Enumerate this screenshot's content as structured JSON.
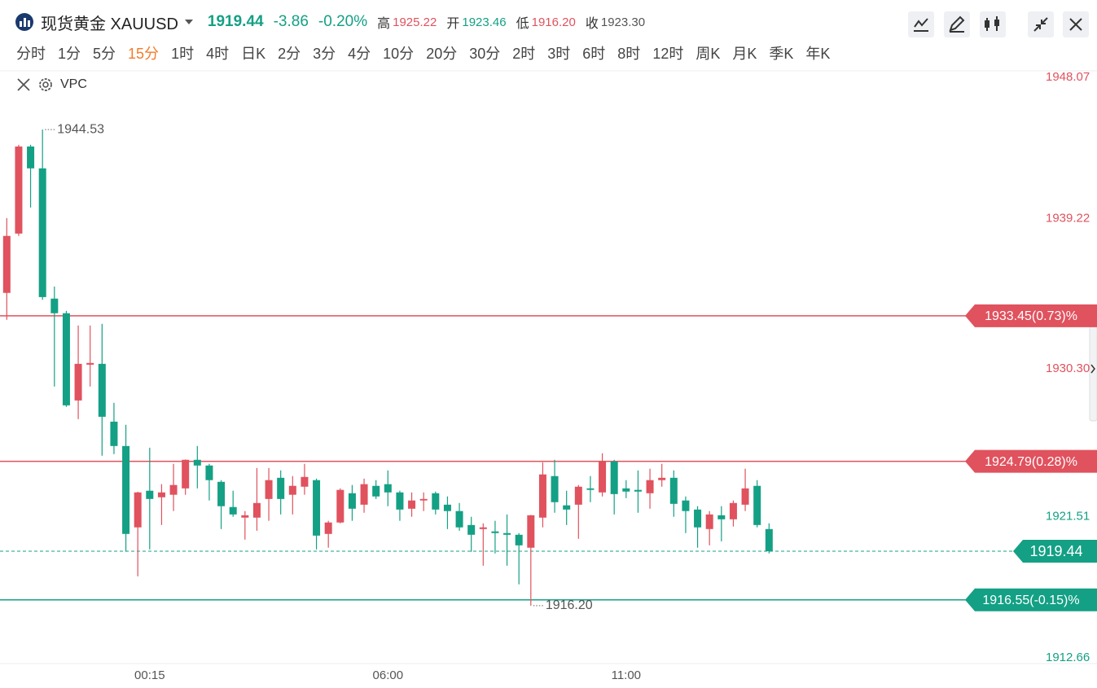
{
  "header": {
    "title": "现货黄金 XAUUSD",
    "price": "1919.44",
    "change": "-3.86",
    "change_pct": "-0.20%",
    "stats": [
      {
        "label": "高",
        "value": "1925.22"
      },
      {
        "label": "开",
        "value": "1923.46"
      },
      {
        "label": "低",
        "value": "1916.20"
      },
      {
        "label": "收",
        "value": "1923.30"
      }
    ]
  },
  "toolbar": {
    "timeframes": [
      "分时",
      "1分",
      "5分",
      "15分",
      "1时",
      "4时",
      "日K",
      "2分",
      "3分",
      "4分",
      "10分",
      "20分",
      "30分",
      "2时",
      "3时",
      "6时",
      "8时",
      "12时",
      "周K",
      "月K",
      "季K",
      "年K"
    ],
    "active": 3
  },
  "indicator": "VPC",
  "chart_data": {
    "type": "candlestick",
    "categories": [
      null,
      null,
      null,
      null,
      null,
      null,
      null,
      null,
      null,
      null,
      null,
      null,
      "00:15",
      null,
      null,
      null,
      null,
      null,
      null,
      null,
      null,
      null,
      null,
      null,
      null,
      null,
      null,
      null,
      null,
      null,
      null,
      null,
      "06:00",
      null,
      null,
      null,
      null,
      null,
      null,
      null,
      null,
      null,
      null,
      null,
      null,
      null,
      null,
      null,
      null,
      null,
      null,
      null,
      "11:00",
      null,
      null,
      null,
      null,
      null,
      null,
      null,
      null,
      null,
      null,
      null,
      null
    ],
    "open": [
      1934.81,
      1938.34,
      1943.52,
      1942.22,
      1934.47,
      1933.6,
      1928.41,
      1930.54,
      1930.59,
      1927.15,
      1925.7,
      1920.86,
      1923.04,
      1922.65,
      1922.8,
      1923.18,
      1924.88,
      1924.54,
      1923.57,
      1922.07,
      1921.44,
      1921.44,
      1922.55,
      1923.81,
      1922.8,
      1923.28,
      1923.67,
      1920.47,
      1921.15,
      1922.89,
      1922.21,
      1923.33,
      1923.43,
      1922.94,
      1921.97,
      1922.46,
      1922.89,
      1922.21,
      1921.83,
      1921.0,
      1920.76,
      1920.62,
      1920.52,
      1920.42,
      1919.65,
      1921.44,
      1923.91,
      1922.17,
      1922.21,
      1923.18,
      1922.94,
      1924.78,
      1923.18,
      1923.09,
      1922.89,
      1923.67,
      1923.81,
      1922.46,
      1921.92,
      1920.76,
      1921.58,
      1921.34,
      1922.21,
      1923.33,
      1920.76
    ],
    "high": [
      1939.26,
      1943.62,
      1943.62,
      1944.53,
      1935.19,
      1933.74,
      1932.87,
      1932.87,
      1932.97,
      1928.27,
      1926.96,
      1922.98,
      1925.6,
      1923.43,
      1924.64,
      1924.9,
      1925.7,
      1924.64,
      1923.67,
      1923.04,
      1921.83,
      1924.39,
      1924.39,
      1924.25,
      1923.91,
      1924.64,
      1923.76,
      1921.25,
      1923.18,
      1923.38,
      1923.76,
      1923.67,
      1924.25,
      1923.04,
      1922.94,
      1922.94,
      1922.99,
      1922.7,
      1922.31,
      1921.49,
      1921.1,
      1921.25,
      1921.63,
      1920.52,
      1921.6,
      1924.73,
      1924.88,
      1923.04,
      1923.38,
      1923.91,
      1925.27,
      1924.88,
      1923.67,
      1924.25,
      1924.35,
      1924.64,
      1924.25,
      1922.7,
      1922.12,
      1921.83,
      1922.12,
      1922.46,
      1924.35,
      1923.67,
      1921.1
    ],
    "low": [
      1933.21,
      1938.2,
      1939.89,
      1934.4,
      1929.24,
      1928.03,
      1927.3,
      1929.24,
      1925.12,
      1925.22,
      1919.41,
      1917.95,
      1919.55,
      1921.0,
      1921.83,
      1922.8,
      1923.18,
      1922.46,
      1920.76,
      1921.49,
      1920.13,
      1920.66,
      1921.25,
      1921.63,
      1921.63,
      1922.8,
      1919.55,
      1919.65,
      1921.1,
      1921.25,
      1921.73,
      1922.55,
      1922.12,
      1921.25,
      1921.49,
      1921.83,
      1921.63,
      1920.76,
      1920.66,
      1919.41,
      1918.58,
      1919.31,
      1918.58,
      1917.47,
      1916.2,
      1920.86,
      1921.73,
      1921.0,
      1920.18,
      1922.36,
      1922.7,
      1921.63,
      1922.6,
      1921.73,
      1921.97,
      1923.28,
      1921.49,
      1920.52,
      1919.65,
      1919.79,
      1920.03,
      1920.91,
      1921.83,
      1920.86,
      1919.31
    ],
    "close": [
      1938.2,
      1943.52,
      1942.22,
      1934.56,
      1933.6,
      1928.12,
      1930.59,
      1930.64,
      1927.44,
      1925.7,
      1920.47,
      1922.94,
      1922.55,
      1922.94,
      1923.38,
      1924.88,
      1924.54,
      1923.67,
      1922.12,
      1921.63,
      1921.58,
      1922.31,
      1923.67,
      1922.55,
      1923.33,
      1923.86,
      1920.37,
      1921.15,
      1923.09,
      1921.97,
      1923.43,
      1922.7,
      1922.94,
      1921.92,
      1922.46,
      1922.55,
      1921.92,
      1921.83,
      1920.86,
      1920.42,
      1920.86,
      1920.52,
      1920.42,
      1919.79,
      1921.58,
      1924.01,
      1922.36,
      1921.92,
      1923.28,
      1923.09,
      1924.78,
      1922.84,
      1922.99,
      1922.99,
      1923.67,
      1923.81,
      1922.26,
      1921.83,
      1920.86,
      1921.63,
      1921.34,
      1922.31,
      1923.18,
      1921.0,
      1919.44
    ],
    "up_color": "#e0525e",
    "down_color": "#14a085",
    "ylim": [
      1912.66,
      1948.07
    ],
    "yticks": [
      1948.07,
      1939.22,
      {
        "value": 1930.3,
        "label": "1930.30"
      },
      1921.51,
      1912.66
    ],
    "grid": false,
    "reference_lines": [
      {
        "value": 1933.45,
        "label": "1933.45(0.73)%",
        "color": "#e0525e"
      },
      {
        "value": 1924.79,
        "label": "1924.79(0.28)%",
        "color": "#e0525e"
      },
      {
        "value": 1916.55,
        "label": "1916.55(-0.15)%",
        "color": "#14a085"
      }
    ],
    "last_price": 1919.44,
    "high_marker": 1944.53,
    "low_marker": {
      "value": 1916.2,
      "label": "1916.20"
    }
  }
}
